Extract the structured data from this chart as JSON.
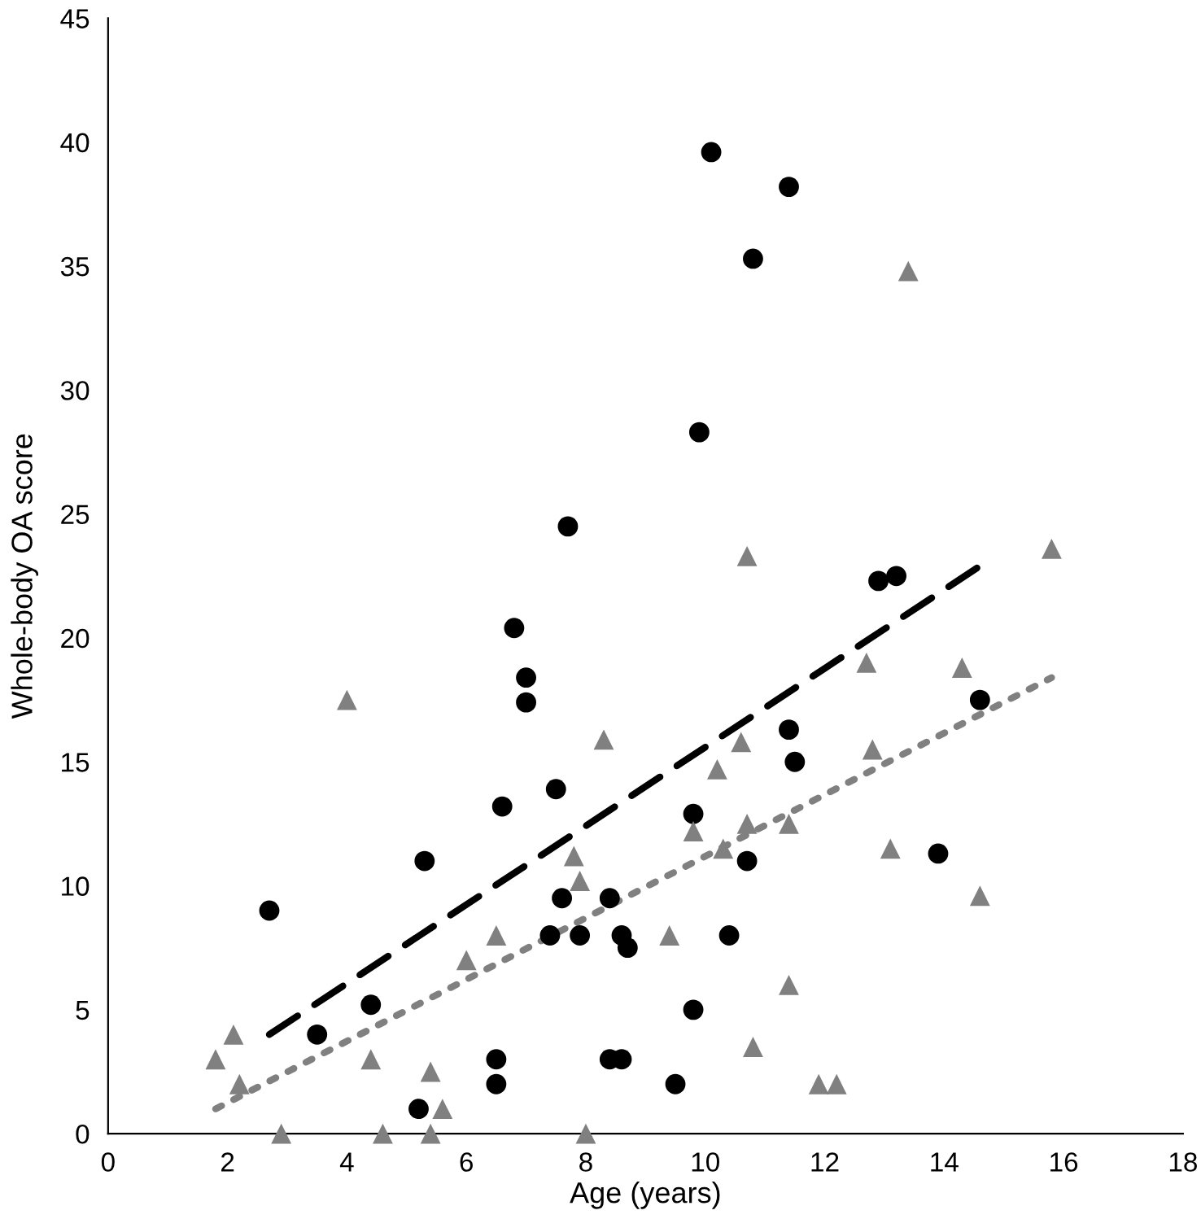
{
  "chart_data": {
    "type": "scatter",
    "xlabel": "Age (years)",
    "ylabel": "Whole-body OA score",
    "xlim": [
      0,
      18
    ],
    "xticks": [
      0,
      2,
      4,
      6,
      8,
      10,
      12,
      14,
      16,
      18
    ],
    "ylim": [
      0,
      45
    ],
    "yticks": [
      0,
      5,
      10,
      15,
      20,
      25,
      30,
      35,
      40,
      45
    ],
    "grid": false,
    "series": [
      {
        "marker": "circle",
        "color": "#000000",
        "x": [
          2.7,
          3.5,
          4.4,
          5.2,
          5.3,
          6.5,
          6.5,
          6.6,
          6.8,
          7.0,
          7.0,
          7.5,
          7.6,
          7.7,
          7.4,
          7.9,
          8.4,
          8.6,
          8.4,
          8.6,
          8.7,
          9.5,
          9.8,
          9.8,
          9.9,
          10.1,
          10.4,
          10.7,
          10.8,
          11.4,
          11.4,
          11.5,
          12.9,
          13.2,
          13.9,
          14.6
        ],
        "values": [
          9,
          4,
          5.2,
          1,
          11,
          3,
          2,
          13.2,
          20.4,
          18.4,
          17.4,
          13.9,
          9.5,
          24.5,
          8,
          8,
          3,
          3,
          9.5,
          8,
          7.5,
          2,
          5,
          12.9,
          28.3,
          39.6,
          8,
          11,
          35.3,
          38.2,
          16.3,
          15,
          22.3,
          22.5,
          11.3,
          17.5
        ]
      },
      {
        "marker": "triangle",
        "color": "#808080",
        "x": [
          1.8,
          2.1,
          2.2,
          2.9,
          4.0,
          4.4,
          4.6,
          5.4,
          5.4,
          5.6,
          6.0,
          6.5,
          7.8,
          7.9,
          8.0,
          8.3,
          9.4,
          9.8,
          10.2,
          10.3,
          10.6,
          10.7,
          10.7,
          10.8,
          11.4,
          11.4,
          11.9,
          12.2,
          12.7,
          12.8,
          13.1,
          13.4,
          14.3,
          14.6,
          15.8
        ],
        "values": [
          3,
          4,
          2,
          0,
          17.5,
          3,
          0,
          0,
          2.5,
          1,
          7,
          8,
          11.2,
          10.2,
          0,
          15.9,
          8,
          12.2,
          14.7,
          11.5,
          15.8,
          12.5,
          23.3,
          3.5,
          12.5,
          6,
          2,
          2,
          19,
          15.5,
          11.5,
          34.8,
          18.8,
          9.6,
          23.6
        ]
      },
      {
        "type": "line",
        "line_style": "dashed",
        "color": "#000000",
        "x": [
          2.7,
          14.6
        ],
        "values": [
          4,
          22.9
        ]
      },
      {
        "type": "line",
        "line_style": "dotted",
        "color": "#808080",
        "x": [
          1.8,
          15.8
        ],
        "values": [
          1,
          18.4
        ]
      }
    ]
  }
}
